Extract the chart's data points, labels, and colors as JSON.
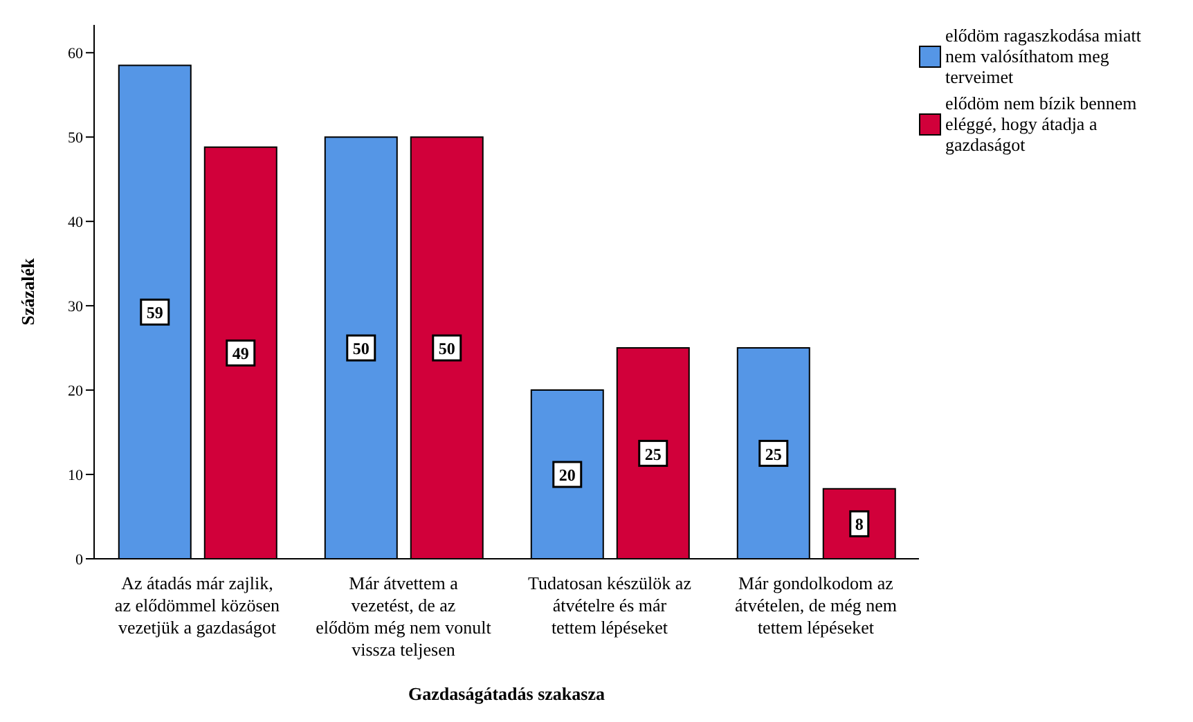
{
  "chart_data": {
    "type": "bar",
    "xlabel": "Gazdaságátadás szakasza",
    "ylabel": "Százalék",
    "categories": [
      "Az átadás már zajlik, az elődömmel közösen vezetjük a gazdaságot",
      "Már átvettem a vezetést, de az elődöm még nem vonult vissza teljesen",
      "Tudatosan készülök az átvételre és már tettem lépéseket",
      "Már gondolkodom az átvételen, de még nem tettem lépéseket"
    ],
    "series": [
      {
        "name": "elődöm ragaszkodása miatt nem valósíthatom meg terveimet",
        "color": "#5596e6",
        "values": [
          58.5,
          50,
          20,
          25
        ],
        "value_labels": [
          "59",
          "50",
          "20",
          "25"
        ]
      },
      {
        "name": "elődöm nem bízik bennem eléggé, hogy átadja a gazdaságot",
        "color": "#d1003a",
        "values": [
          48.8,
          50,
          25,
          8.3
        ],
        "value_labels": [
          "49",
          "50",
          "25",
          "8"
        ]
      }
    ],
    "ylim": [
      0,
      63.3
    ],
    "yticks": [
      0,
      10,
      20,
      30,
      40,
      50,
      60
    ],
    "grid": false,
    "legend": "top right"
  }
}
